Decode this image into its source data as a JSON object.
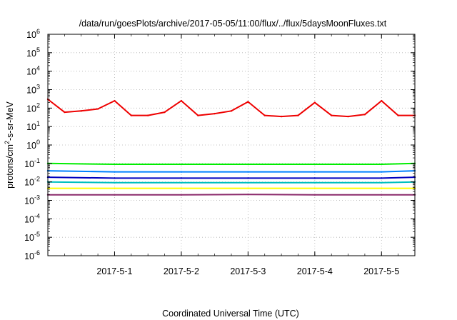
{
  "chart_data": {
    "type": "line",
    "title": "/data/run/goesPlots/archive/2017-05-05/11:00/flux/../flux/5daysMoonFluxes.txt",
    "xlabel": "Coordinated Universal Time (UTC)",
    "ylabel": {
      "base": "protons/cm",
      "sup": "2",
      "rest": "-s-sr-MeV"
    },
    "yscale": "log",
    "ylim_exp": [
      -6,
      6
    ],
    "xlim": [
      "2017-04-30T00:00",
      "2017-05-05T12:00"
    ],
    "grid": true,
    "y_ticks": [
      {
        "base": "10",
        "exp": "6"
      },
      {
        "base": "10",
        "exp": "5"
      },
      {
        "base": "10",
        "exp": "4"
      },
      {
        "base": "10",
        "exp": "3"
      },
      {
        "base": "10",
        "exp": "2"
      },
      {
        "base": "10",
        "exp": "1"
      },
      {
        "base": "10",
        "exp": "0"
      },
      {
        "base": "10",
        "exp": "-1"
      },
      {
        "base": "10",
        "exp": "-2"
      },
      {
        "base": "10",
        "exp": "-3"
      },
      {
        "base": "10",
        "exp": "-4"
      },
      {
        "base": "10",
        "exp": "-5"
      },
      {
        "base": "10",
        "exp": "-6"
      }
    ],
    "x_ticks": [
      {
        "label": "2017-5-1",
        "date": "2017-05-01T00:00"
      },
      {
        "label": "2017-5-2",
        "date": "2017-05-02T00:00"
      },
      {
        "label": "2017-5-3",
        "date": "2017-05-03T00:00"
      },
      {
        "label": "2017-5-4",
        "date": "2017-05-04T00:00"
      },
      {
        "label": "2017-5-5",
        "date": "2017-05-05T00:00"
      }
    ],
    "series": [
      {
        "color": "#ee0000",
        "x": [
          "2017-04-30T00:00",
          "2017-04-30T06:00",
          "2017-04-30T12:00",
          "2017-04-30T18:00",
          "2017-05-01T00:00",
          "2017-05-01T06:00",
          "2017-05-01T12:00",
          "2017-05-01T18:00",
          "2017-05-02T00:00",
          "2017-05-02T06:00",
          "2017-05-02T12:00",
          "2017-05-02T18:00",
          "2017-05-03T00:00",
          "2017-05-03T06:00",
          "2017-05-03T12:00",
          "2017-05-03T18:00",
          "2017-05-04T00:00",
          "2017-05-04T06:00",
          "2017-05-04T12:00",
          "2017-05-04T18:00",
          "2017-05-05T00:00",
          "2017-05-05T06:00",
          "2017-05-05T12:00"
        ],
        "y": [
          300,
          60,
          70,
          90,
          250,
          40,
          40,
          60,
          250,
          40,
          50,
          70,
          220,
          40,
          35,
          40,
          200,
          40,
          35,
          45,
          250,
          40,
          40
        ]
      },
      {
        "color": "#00ee00",
        "x": [
          "2017-04-30T00:00",
          "2017-05-01T00:00",
          "2017-05-02T00:00",
          "2017-05-03T00:00",
          "2017-05-04T00:00",
          "2017-05-05T00:00",
          "2017-05-05T12:00"
        ],
        "y": [
          0.1,
          0.09,
          0.09,
          0.09,
          0.09,
          0.09,
          0.1
        ]
      },
      {
        "color": "#0080ff",
        "x": [
          "2017-04-30T00:00",
          "2017-05-01T00:00",
          "2017-05-02T00:00",
          "2017-05-03T00:00",
          "2017-05-04T00:00",
          "2017-05-05T00:00",
          "2017-05-05T12:00"
        ],
        "y": [
          0.04,
          0.035,
          0.035,
          0.035,
          0.035,
          0.035,
          0.04
        ]
      },
      {
        "color": "#0000c0",
        "x": [
          "2017-04-30T00:00",
          "2017-05-01T00:00",
          "2017-05-02T00:00",
          "2017-05-03T00:00",
          "2017-05-04T00:00",
          "2017-05-05T00:00",
          "2017-05-05T12:00"
        ],
        "y": [
          0.018,
          0.016,
          0.016,
          0.016,
          0.016,
          0.016,
          0.018
        ]
      },
      {
        "color": "#00c0c0",
        "x": [
          "2017-04-30T00:00",
          "2017-05-01T00:00",
          "2017-05-02T00:00",
          "2017-05-03T00:00",
          "2017-05-04T00:00",
          "2017-05-05T00:00",
          "2017-05-05T12:00"
        ],
        "y": [
          0.01,
          0.009,
          0.009,
          0.009,
          0.009,
          0.009,
          0.01
        ]
      },
      {
        "color": "#ffff00",
        "x": [
          "2017-04-30T00:00",
          "2017-05-01T00:00",
          "2017-05-02T00:00",
          "2017-05-03T00:00",
          "2017-05-04T00:00",
          "2017-05-05T00:00",
          "2017-05-05T12:00"
        ],
        "y": [
          0.0045,
          0.0045,
          0.0045,
          0.0045,
          0.0045,
          0.0045,
          0.0045
        ]
      },
      {
        "color": "#8b2a6b",
        "x": [
          "2017-04-30T00:00",
          "2017-05-01T00:00",
          "2017-05-02T00:00",
          "2017-05-03T00:00",
          "2017-05-04T00:00",
          "2017-05-05T00:00",
          "2017-05-05T12:00"
        ],
        "y": [
          0.002,
          0.002,
          0.002,
          0.0021,
          0.002,
          0.002,
          0.002
        ]
      }
    ]
  }
}
